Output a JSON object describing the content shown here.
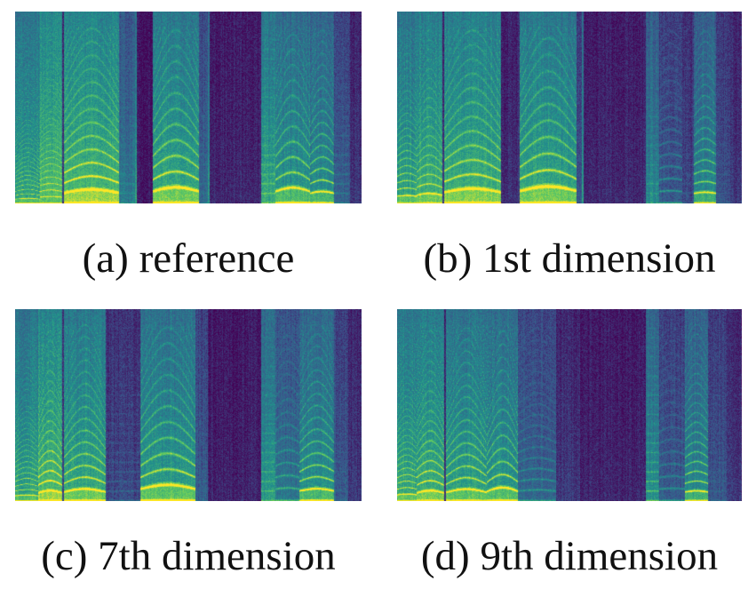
{
  "figure": {
    "colormap": [
      "#440154",
      "#3b528b",
      "#21918c",
      "#5ec962",
      "#fde725"
    ],
    "panels": [
      {
        "id": "a",
        "caption": "(a) reference",
        "seed": 11,
        "columns": [
          {
            "from": 0.0,
            "to": 0.07,
            "energy": 0.58,
            "harm": 0.55,
            "f0": 0.02,
            "wave": 0.004
          },
          {
            "from": 0.07,
            "to": 0.135,
            "energy": 0.72,
            "harm": 0.5,
            "f0": 0.03,
            "wave": 0.004
          },
          {
            "from": 0.135,
            "to": 0.14,
            "energy": 0.2,
            "harm": 0.0,
            "f0": 0.03,
            "wave": 0.0
          },
          {
            "from": 0.14,
            "to": 0.3,
            "energy": 0.7,
            "harm": 0.92,
            "f0": 0.052,
            "wave": 0.018
          },
          {
            "from": 0.3,
            "to": 0.345,
            "energy": 0.42,
            "harm": 0.15,
            "f0": 0.05,
            "wave": 0.0
          },
          {
            "from": 0.345,
            "to": 0.35,
            "energy": 0.6,
            "harm": 0.0,
            "f0": 0.05,
            "wave": 0.0
          },
          {
            "from": 0.35,
            "to": 0.395,
            "energy": 0.08,
            "harm": 0.0,
            "f0": 0.05,
            "wave": 0.0
          },
          {
            "from": 0.395,
            "to": 0.53,
            "energy": 0.62,
            "harm": 0.95,
            "f0": 0.06,
            "wave": 0.022
          },
          {
            "from": 0.53,
            "to": 0.555,
            "energy": 0.34,
            "harm": 0.1,
            "f0": 0.05,
            "wave": 0.0
          },
          {
            "from": 0.555,
            "to": 0.56,
            "energy": 0.55,
            "harm": 0.0,
            "f0": 0.05,
            "wave": 0.0
          },
          {
            "from": 0.56,
            "to": 0.71,
            "energy": 0.13,
            "harm": 0.0,
            "f0": 0.05,
            "wave": 0.0
          },
          {
            "from": 0.71,
            "to": 0.75,
            "energy": 0.62,
            "harm": 0.3,
            "f0": 0.05,
            "wave": 0.0
          },
          {
            "from": 0.75,
            "to": 0.85,
            "energy": 0.55,
            "harm": 0.85,
            "f0": 0.06,
            "wave": 0.02
          },
          {
            "from": 0.85,
            "to": 0.92,
            "energy": 0.5,
            "harm": 0.9,
            "f0": 0.05,
            "wave": 0.01
          },
          {
            "from": 0.92,
            "to": 0.965,
            "energy": 0.3,
            "harm": 0.2,
            "f0": 0.05,
            "wave": 0.0
          },
          {
            "from": 0.965,
            "to": 1.0,
            "energy": 0.18,
            "harm": 0.0,
            "f0": 0.05,
            "wave": 0.0
          }
        ]
      },
      {
        "id": "b",
        "caption": "(b) 1st dimension",
        "seed": 23,
        "columns": [
          {
            "from": 0.0,
            "to": 0.055,
            "energy": 0.6,
            "harm": 0.7,
            "f0": 0.035,
            "wave": 0.004
          },
          {
            "from": 0.055,
            "to": 0.13,
            "energy": 0.66,
            "harm": 0.65,
            "f0": 0.04,
            "wave": 0.01
          },
          {
            "from": 0.13,
            "to": 0.135,
            "energy": 0.2,
            "harm": 0.0,
            "f0": 0.05,
            "wave": 0.0
          },
          {
            "from": 0.135,
            "to": 0.3,
            "energy": 0.66,
            "harm": 0.88,
            "f0": 0.055,
            "wave": 0.02
          },
          {
            "from": 0.3,
            "to": 0.355,
            "energy": 0.15,
            "harm": 0.0,
            "f0": 0.05,
            "wave": 0.0
          },
          {
            "from": 0.355,
            "to": 0.52,
            "energy": 0.62,
            "harm": 0.95,
            "f0": 0.062,
            "wave": 0.024
          },
          {
            "from": 0.52,
            "to": 0.535,
            "energy": 0.28,
            "harm": 0.0,
            "f0": 0.05,
            "wave": 0.0
          },
          {
            "from": 0.535,
            "to": 0.54,
            "energy": 0.55,
            "harm": 0.0,
            "f0": 0.05,
            "wave": 0.0
          },
          {
            "from": 0.54,
            "to": 0.72,
            "energy": 0.13,
            "harm": 0.0,
            "f0": 0.05,
            "wave": 0.0
          },
          {
            "from": 0.72,
            "to": 0.76,
            "energy": 0.48,
            "harm": 0.2,
            "f0": 0.05,
            "wave": 0.0
          },
          {
            "from": 0.76,
            "to": 0.825,
            "energy": 0.28,
            "harm": 0.5,
            "f0": 0.06,
            "wave": 0.004
          },
          {
            "from": 0.825,
            "to": 0.86,
            "energy": 0.22,
            "harm": 0.1,
            "f0": 0.05,
            "wave": 0.0
          },
          {
            "from": 0.86,
            "to": 0.925,
            "energy": 0.48,
            "harm": 0.85,
            "f0": 0.05,
            "wave": 0.006
          },
          {
            "from": 0.925,
            "to": 0.965,
            "energy": 0.26,
            "harm": 0.1,
            "f0": 0.05,
            "wave": 0.0
          },
          {
            "from": 0.965,
            "to": 1.0,
            "energy": 0.18,
            "harm": 0.0,
            "f0": 0.05,
            "wave": 0.0
          }
        ]
      },
      {
        "id": "c",
        "caption": "(c) 7th dimension",
        "seed": 37,
        "columns": [
          {
            "from": 0.0,
            "to": 0.065,
            "energy": 0.6,
            "harm": 0.65,
            "f0": 0.025,
            "wave": 0.004
          },
          {
            "from": 0.065,
            "to": 0.135,
            "energy": 0.7,
            "harm": 0.85,
            "f0": 0.04,
            "wave": 0.012
          },
          {
            "from": 0.135,
            "to": 0.14,
            "energy": 0.2,
            "harm": 0.0,
            "f0": 0.05,
            "wave": 0.0
          },
          {
            "from": 0.14,
            "to": 0.26,
            "energy": 0.62,
            "harm": 0.85,
            "f0": 0.045,
            "wave": 0.016
          },
          {
            "from": 0.26,
            "to": 0.36,
            "energy": 0.22,
            "harm": 0.2,
            "f0": 0.05,
            "wave": 0.0
          },
          {
            "from": 0.36,
            "to": 0.52,
            "energy": 0.58,
            "harm": 0.92,
            "f0": 0.06,
            "wave": 0.022
          },
          {
            "from": 0.52,
            "to": 0.555,
            "energy": 0.3,
            "harm": 0.1,
            "f0": 0.05,
            "wave": 0.0
          },
          {
            "from": 0.555,
            "to": 0.71,
            "energy": 0.11,
            "harm": 0.0,
            "f0": 0.05,
            "wave": 0.0
          },
          {
            "from": 0.71,
            "to": 0.75,
            "energy": 0.55,
            "harm": 0.3,
            "f0": 0.05,
            "wave": 0.0
          },
          {
            "from": 0.75,
            "to": 0.82,
            "energy": 0.4,
            "harm": 0.5,
            "f0": 0.06,
            "wave": 0.006
          },
          {
            "from": 0.82,
            "to": 0.92,
            "energy": 0.52,
            "harm": 0.9,
            "f0": 0.05,
            "wave": 0.012
          },
          {
            "from": 0.92,
            "to": 0.96,
            "energy": 0.3,
            "harm": 0.1,
            "f0": 0.05,
            "wave": 0.0
          },
          {
            "from": 0.96,
            "to": 1.0,
            "energy": 0.18,
            "harm": 0.0,
            "f0": 0.05,
            "wave": 0.0
          }
        ]
      },
      {
        "id": "d",
        "caption": "(d) 9th dimension",
        "seed": 53,
        "columns": [
          {
            "from": 0.0,
            "to": 0.055,
            "energy": 0.62,
            "harm": 0.7,
            "f0": 0.03,
            "wave": 0.004
          },
          {
            "from": 0.055,
            "to": 0.135,
            "energy": 0.64,
            "harm": 0.85,
            "f0": 0.04,
            "wave": 0.012
          },
          {
            "from": 0.135,
            "to": 0.14,
            "energy": 0.2,
            "harm": 0.0,
            "f0": 0.05,
            "wave": 0.0
          },
          {
            "from": 0.14,
            "to": 0.26,
            "energy": 0.6,
            "harm": 0.85,
            "f0": 0.042,
            "wave": 0.018
          },
          {
            "from": 0.26,
            "to": 0.35,
            "energy": 0.55,
            "harm": 0.9,
            "f0": 0.048,
            "wave": 0.02
          },
          {
            "from": 0.35,
            "to": 0.46,
            "energy": 0.34,
            "harm": 0.4,
            "f0": 0.05,
            "wave": 0.006
          },
          {
            "from": 0.46,
            "to": 0.53,
            "energy": 0.18,
            "harm": 0.0,
            "f0": 0.05,
            "wave": 0.0
          },
          {
            "from": 0.53,
            "to": 0.72,
            "energy": 0.12,
            "harm": 0.0,
            "f0": 0.05,
            "wave": 0.0
          },
          {
            "from": 0.72,
            "to": 0.76,
            "energy": 0.5,
            "harm": 0.4,
            "f0": 0.05,
            "wave": 0.0
          },
          {
            "from": 0.76,
            "to": 0.835,
            "energy": 0.3,
            "harm": 0.4,
            "f0": 0.06,
            "wave": 0.004
          },
          {
            "from": 0.835,
            "to": 0.9,
            "energy": 0.48,
            "harm": 0.9,
            "f0": 0.045,
            "wave": 0.006
          },
          {
            "from": 0.9,
            "to": 0.955,
            "energy": 0.28,
            "harm": 0.1,
            "f0": 0.05,
            "wave": 0.0
          },
          {
            "from": 0.955,
            "to": 1.0,
            "energy": 0.18,
            "harm": 0.0,
            "f0": 0.05,
            "wave": 0.0
          }
        ]
      }
    ]
  }
}
